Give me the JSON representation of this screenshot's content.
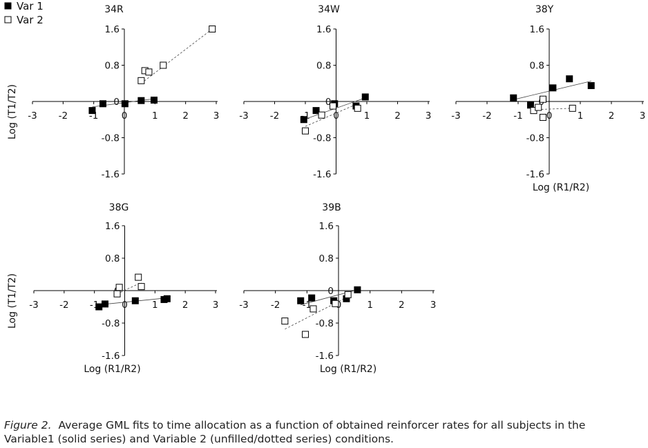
{
  "figure": {
    "caption_label": "Figure 2.",
    "caption_text": "Average GML fits to time allocation as a function of obtained reinforcer rates for all subjects in the Variable1 (solid series) and Variable 2 (unfilled/dotted series) conditions."
  },
  "colors": {
    "axis": "#000000",
    "filled": "#000000",
    "unfilled": "#ffffff",
    "fit_line": "#444444"
  },
  "chart_data": [
    {
      "type": "scatter",
      "title": "34R",
      "xlabel": "",
      "ylabel": "Log (T1/T2)",
      "xlim": [
        -3,
        3
      ],
      "ylim": [
        -1.6,
        1.6
      ],
      "x_ticks": [
        "-3",
        "-2",
        "-1",
        "0",
        "1",
        "2",
        "3"
      ],
      "y_ticks": [
        "1.6",
        "0.8",
        "0",
        "-0.8",
        "-1.6"
      ],
      "legend": [
        "Var 1",
        "Var 2"
      ],
      "series": [
        {
          "name": "Var 1",
          "marker": "filled-square",
          "points": [
            [
              -1.05,
              -0.2
            ],
            [
              -0.7,
              -0.05
            ],
            [
              0.02,
              -0.05
            ],
            [
              0.55,
              0.02
            ],
            [
              0.97,
              0.03
            ]
          ],
          "fit": [
            [
              -1.05,
              -0.12
            ],
            [
              0.97,
              0.06
            ]
          ]
        },
        {
          "name": "Var 2",
          "marker": "open-square",
          "points": [
            [
              0.55,
              0.46
            ],
            [
              0.67,
              0.68
            ],
            [
              0.8,
              0.65
            ],
            [
              1.27,
              0.8
            ],
            [
              2.87,
              1.6
            ]
          ],
          "fit": [
            [
              0.55,
              0.4
            ],
            [
              2.87,
              1.6
            ]
          ]
        }
      ]
    },
    {
      "type": "scatter",
      "title": "34W",
      "xlabel": "",
      "ylabel": "",
      "xlim": [
        -3,
        3
      ],
      "ylim": [
        -1.6,
        1.6
      ],
      "x_ticks": [
        "-3",
        "-2",
        "-1",
        "0",
        "1",
        "2",
        "3"
      ],
      "y_ticks": [
        "1.6",
        "0.8",
        "0",
        "-0.8",
        "-1.6"
      ],
      "series": [
        {
          "name": "Var 1",
          "marker": "filled-square",
          "points": [
            [
              -1.05,
              -0.4
            ],
            [
              -0.65,
              -0.2
            ],
            [
              -0.05,
              -0.05
            ],
            [
              0.65,
              -0.1
            ],
            [
              0.95,
              0.1
            ]
          ],
          "fit": [
            [
              -1.05,
              -0.4
            ],
            [
              0.95,
              0.08
            ]
          ]
        },
        {
          "name": "Var 2",
          "marker": "open-square",
          "points": [
            [
              -1.0,
              -0.65
            ],
            [
              -0.47,
              -0.3
            ],
            [
              -0.1,
              -0.1
            ],
            [
              0.7,
              -0.15
            ]
          ],
          "fit": [
            [
              -1.0,
              -0.55
            ],
            [
              0.7,
              -0.05
            ]
          ]
        }
      ]
    },
    {
      "type": "scatter",
      "title": "38Y",
      "xlabel": "Log (R1/R2)",
      "ylabel": "",
      "xlim": [
        -3,
        3
      ],
      "ylim": [
        -1.6,
        1.6
      ],
      "x_ticks": [
        "-3",
        "-2",
        "-1",
        "0",
        "1",
        "2",
        "3"
      ],
      "y_ticks": [
        "1.6",
        "0.8",
        "0",
        "-0.8",
        "-1.6"
      ],
      "series": [
        {
          "name": "Var 1",
          "marker": "filled-square",
          "points": [
            [
              -1.15,
              0.08
            ],
            [
              -0.6,
              -0.08
            ],
            [
              0.12,
              0.3
            ],
            [
              0.65,
              0.5
            ],
            [
              1.35,
              0.35
            ]
          ],
          "fit": [
            [
              -1.15,
              0.04
            ],
            [
              1.35,
              0.45
            ]
          ]
        },
        {
          "name": "Var 2",
          "marker": "open-square",
          "points": [
            [
              -0.5,
              -0.2
            ],
            [
              -0.35,
              -0.13
            ],
            [
              -0.2,
              0.05
            ],
            [
              -0.2,
              -0.35
            ],
            [
              0.75,
              -0.15
            ]
          ],
          "fit": [
            [
              -0.5,
              -0.18
            ],
            [
              0.75,
              -0.15
            ]
          ]
        }
      ]
    },
    {
      "type": "scatter",
      "title": "38G",
      "xlabel": "Log (R1/R2)",
      "ylabel": "Log (T1/T2)",
      "xlim": [
        -3,
        3
      ],
      "ylim": [
        -1.6,
        1.6
      ],
      "x_ticks": [
        "-3",
        "-2",
        "-1",
        "0",
        "1",
        "2",
        "3"
      ],
      "y_ticks": [
        "1.6",
        "0.8",
        "0",
        "-0.8",
        "-1.6"
      ],
      "series": [
        {
          "name": "Var 1",
          "marker": "filled-square",
          "points": [
            [
              -0.85,
              -0.4
            ],
            [
              -0.65,
              -0.33
            ],
            [
              0.35,
              -0.25
            ],
            [
              1.3,
              -0.22
            ],
            [
              1.4,
              -0.2
            ]
          ],
          "fit": [
            [
              -0.85,
              -0.35
            ],
            [
              1.4,
              -0.18
            ]
          ]
        },
        {
          "name": "Var 2",
          "marker": "open-square",
          "points": [
            [
              -0.25,
              -0.08
            ],
            [
              -0.18,
              0.08
            ],
            [
              0.45,
              0.33
            ],
            [
              0.55,
              0.1
            ]
          ],
          "fit": [
            [
              -0.25,
              -0.08
            ],
            [
              0.55,
              0.2
            ]
          ]
        }
      ]
    },
    {
      "type": "scatter",
      "title": "39B",
      "xlabel": "Log (R1/R2)",
      "ylabel": "",
      "xlim": [
        -3,
        3
      ],
      "ylim": [
        -1.6,
        1.6
      ],
      "x_ticks": [
        "-3",
        "-2",
        "-1",
        "0",
        "1",
        "2",
        "3"
      ],
      "y_ticks": [
        "1.6",
        "0.8",
        "0",
        "-0.8",
        "-1.6"
      ],
      "series": [
        {
          "name": "Var 1",
          "marker": "filled-square",
          "points": [
            [
              -1.2,
              -0.25
            ],
            [
              -0.85,
              -0.18
            ],
            [
              -0.15,
              -0.25
            ],
            [
              0.25,
              -0.2
            ],
            [
              0.6,
              0.02
            ]
          ],
          "fit": [
            [
              -1.2,
              -0.35
            ],
            [
              0.6,
              0.02
            ]
          ]
        },
        {
          "name": "Var 2",
          "marker": "open-square",
          "points": [
            [
              -1.7,
              -0.75
            ],
            [
              -0.8,
              -0.45
            ],
            [
              -0.1,
              -0.32
            ],
            [
              0.3,
              -0.1
            ],
            [
              -1.05,
              -1.08
            ]
          ],
          "fit": [
            [
              -1.7,
              -0.95
            ],
            [
              0.3,
              -0.15
            ]
          ]
        }
      ]
    }
  ]
}
